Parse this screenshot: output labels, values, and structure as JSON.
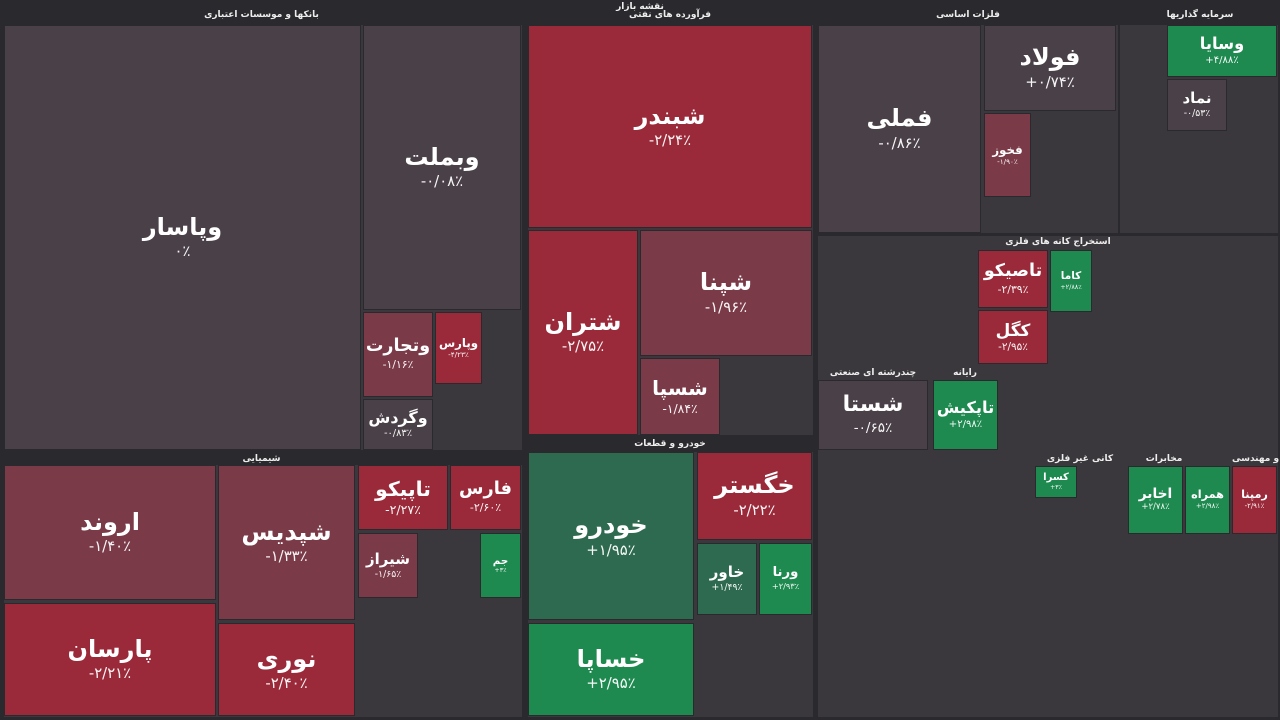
{
  "title": "نقشه بازار",
  "sectors": [
    {
      "title": "بانکها و موسسات اعتباری",
      "tiles": [
        {
          "name": "وپاسار",
          "change": "۰٪",
          "color": "#4a4048"
        },
        {
          "name": "وبملت",
          "change": "-۰/۰۸٪",
          "color": "#4a4048"
        },
        {
          "name": "وتجارت",
          "change": "-۱/۱۶٪",
          "color": "#7a3a48"
        },
        {
          "name": "وپارس",
          "change": "-۴/۲۳٪",
          "color": "#9a2a3a"
        },
        {
          "name": "وگردش",
          "change": "-۰/۸۳٪",
          "color": "#4a4048"
        }
      ]
    },
    {
      "title": "فرآورده های نفتی",
      "tiles": [
        {
          "name": "شبندر",
          "change": "-۲/۲۴٪",
          "color": "#9a2a3a"
        },
        {
          "name": "شتران",
          "change": "-۲/۷۵٪",
          "color": "#9a2a3a"
        },
        {
          "name": "شپنا",
          "change": "-۱/۹۶٪",
          "color": "#7a3a48"
        },
        {
          "name": "شسپا",
          "change": "-۱/۸۴٪",
          "color": "#7a3a48"
        }
      ]
    },
    {
      "title": "فلزات اساسی",
      "tiles": [
        {
          "name": "فملی",
          "change": "-۰/۸۶٪",
          "color": "#4a4048"
        },
        {
          "name": "فولاد",
          "change": "+۰/۷۴٪",
          "color": "#4a4048"
        },
        {
          "name": "فخوز",
          "change": "-۱/۹۰٪",
          "color": "#7a3a48"
        }
      ]
    },
    {
      "title": "سرمایه گذاریها",
      "tiles": [
        {
          "name": "وسایا",
          "change": "+۴/۸۸٪",
          "color": "#1e8a50"
        },
        {
          "name": "نماد",
          "change": "-۰/۵۳٪",
          "color": "#4a4048"
        }
      ]
    },
    {
      "title": "شیمیایی",
      "tiles": [
        {
          "name": "اروند",
          "change": "-۱/۴۰٪",
          "color": "#7a3a48"
        },
        {
          "name": "شپدیس",
          "change": "-۱/۳۳٪",
          "color": "#7a3a48"
        },
        {
          "name": "پارسان",
          "change": "-۲/۲۱٪",
          "color": "#9a2a3a"
        },
        {
          "name": "نوری",
          "change": "-۲/۴۰٪",
          "color": "#9a2a3a"
        },
        {
          "name": "تاپیکو",
          "change": "-۲/۲۷٪",
          "color": "#9a2a3a"
        },
        {
          "name": "فارس",
          "change": "-۲/۶۰٪",
          "color": "#9a2a3a"
        },
        {
          "name": "شیراز",
          "change": "-۱/۶۵٪",
          "color": "#7a3a48"
        },
        {
          "name": "جم",
          "change": "+۳٪",
          "color": "#1e8a50"
        }
      ]
    },
    {
      "title": "خودرو و قطعات",
      "tiles": [
        {
          "name": "خودرو",
          "change": "+۱/۹۵٪",
          "color": "#2e6a50"
        },
        {
          "name": "خساپا",
          "change": "+۲/۹۵٪",
          "color": "#1e8a50"
        },
        {
          "name": "خگستر",
          "change": "-۲/۲۲٪",
          "color": "#9a2a3a"
        },
        {
          "name": "خاور",
          "change": "+۱/۴۹٪",
          "color": "#2e6a50"
        },
        {
          "name": "ورنا",
          "change": "+۲/۹۳٪",
          "color": "#1e8a50"
        }
      ]
    },
    {
      "title": "چندرشته ای صنعتی",
      "tiles": [
        {
          "name": "شستا",
          "change": "-۰/۶۵٪",
          "color": "#4a4048"
        }
      ]
    },
    {
      "title": "رایانه",
      "tiles": [
        {
          "name": "تاپکیش",
          "change": "+۲/۹۸٪",
          "color": "#1e8a50"
        }
      ]
    },
    {
      "title": "استخراج کانه های فلزی",
      "tiles": [
        {
          "name": "تاصیکو",
          "change": "-۲/۳۹٪",
          "color": "#9a2a3a"
        },
        {
          "name": "کگل",
          "change": "-۲/۹۵٪",
          "color": "#9a2a3a"
        },
        {
          "name": "کاما",
          "change": "+۲/۸۸٪",
          "color": "#1e8a50"
        }
      ]
    },
    {
      "title": "مخابرات",
      "tiles": [
        {
          "name": "اخابر",
          "change": "+۲/۷۸٪",
          "color": "#1e8a50"
        },
        {
          "name": "همراه",
          "change": "+۲/۹۸٪",
          "color": "#1e8a50"
        }
      ]
    },
    {
      "title": "فنی و مهندسی",
      "tiles": [
        {
          "name": "رمپنا",
          "change": "-۲/۹۱٪",
          "color": "#9a2a3a"
        }
      ]
    },
    {
      "title": "کانی غیر فلزی",
      "tiles": [
        {
          "name": "کسرا",
          "change": "+۳٪",
          "color": "#1e8a50"
        }
      ]
    }
  ]
}
